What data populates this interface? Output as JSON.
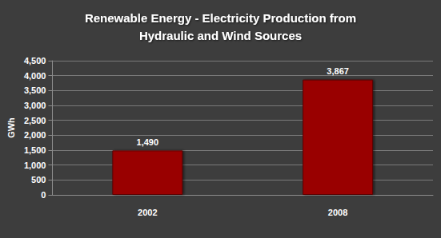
{
  "chart_data": {
    "type": "bar",
    "title": "Renewable Energy - Electricity Production from\nHydraulic and Wind Sources",
    "ylabel": "GWh",
    "categories": [
      "2002",
      "2008"
    ],
    "values": [
      1490,
      3867
    ],
    "value_labels": [
      "1,490",
      "3,867"
    ],
    "color": "#990000",
    "ylim": [
      0,
      4500
    ],
    "yticks": [
      0,
      500,
      {
        "value": 1000,
        "label": "1,000"
      },
      {
        "value": 1500,
        "label": "1,500"
      },
      {
        "value": 2000,
        "label": "2,000"
      },
      {
        "value": 2500,
        "label": "2,500"
      },
      {
        "value": 3000,
        "label": "3,000"
      },
      {
        "value": 3500,
        "label": "3,500"
      },
      {
        "value": 4000,
        "label": "4,000"
      },
      {
        "value": 4500,
        "label": "4,500"
      }
    ],
    "grid": true,
    "data_labels": true
  }
}
